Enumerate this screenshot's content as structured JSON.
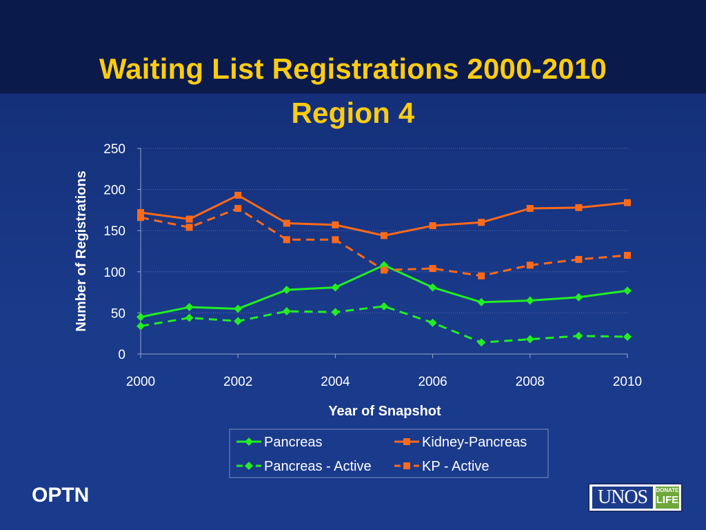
{
  "slide": {
    "title_line1": "Waiting List Registrations 2000-2010",
    "title_line2": "Region 4",
    "footer_left": "OPTN",
    "logo_text": "UNOS",
    "logo_badge_top": "DONATE",
    "logo_badge_bottom": "LIFE"
  },
  "colors": {
    "green": "#22ee22",
    "orange": "#ff6a1a",
    "title": "#ffcc11",
    "axis_text": "#ffffff"
  },
  "chart_data": {
    "type": "line",
    "xlabel": "Year of Snapshot",
    "ylabel": "Number of Registrations",
    "xlim": [
      2000,
      2010
    ],
    "ylim": [
      0,
      250
    ],
    "x_ticks": [
      2000,
      2002,
      2004,
      2006,
      2008,
      2010
    ],
    "y_ticks": [
      0,
      50,
      100,
      150,
      200,
      250
    ],
    "grid": "horizontal dotted",
    "legend_position": "bottom",
    "x": [
      2000,
      2001,
      2002,
      2003,
      2004,
      2005,
      2006,
      2007,
      2008,
      2009,
      2010
    ],
    "series": [
      {
        "name": "Pancreas",
        "color": "#22ee22",
        "marker": "diamond",
        "dash": "solid",
        "values": [
          45,
          57,
          55,
          78,
          81,
          108,
          81,
          63,
          65,
          69,
          77
        ]
      },
      {
        "name": "Kidney-Pancreas",
        "color": "#ff6a1a",
        "marker": "square",
        "dash": "solid",
        "values": [
          172,
          164,
          193,
          159,
          157,
          144,
          156,
          160,
          177,
          178,
          184
        ]
      },
      {
        "name": "Pancreas - Active",
        "color": "#22ee22",
        "marker": "diamond",
        "dash": "dashed",
        "values": [
          34,
          44,
          40,
          52,
          51,
          58,
          38,
          14,
          18,
          22,
          21
        ]
      },
      {
        "name": "KP - Active",
        "color": "#ff6a1a",
        "marker": "square",
        "dash": "dashed",
        "values": [
          166,
          154,
          177,
          139,
          139,
          102,
          104,
          95,
          108,
          115,
          120
        ]
      }
    ]
  }
}
